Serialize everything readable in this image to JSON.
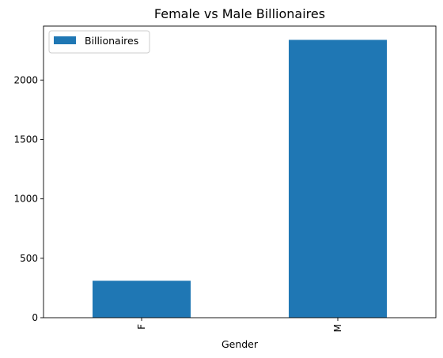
{
  "chart_data": {
    "type": "bar",
    "title": "Female vs Male Billionaires",
    "xlabel": "Gender",
    "ylabel": "",
    "categories": [
      "F",
      "M"
    ],
    "series": [
      {
        "name": "Billionaires",
        "values": [
          311,
          2338
        ]
      }
    ],
    "ylim": [
      0,
      2454
    ],
    "yticks": [
      0,
      500,
      1000,
      1500,
      2000
    ],
    "legend": "top-left",
    "grid": false,
    "colors": {
      "bar": "#1f77b4",
      "axis": "#000000"
    }
  }
}
